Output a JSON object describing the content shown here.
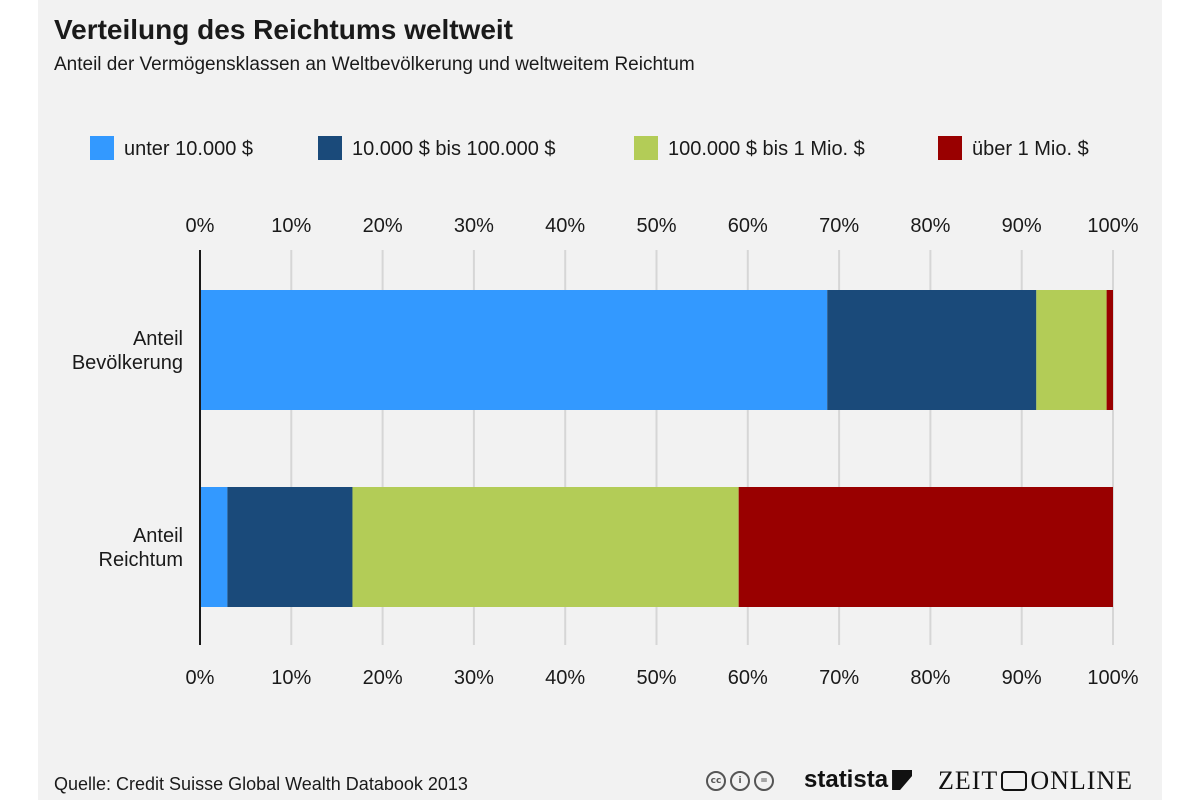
{
  "header": {
    "title": "Verteilung des Reichtums weltweit",
    "subtitle": "Anteil der Vermögensklassen an Weltbevölkerung und weltweitem Reichtum"
  },
  "footer": {
    "source": "Quelle: Credit Suisse Global Wealth Databook 2013",
    "cc_icons": [
      "cc-icon",
      "by-icon",
      "nd-icon"
    ],
    "brand_statista": "statista",
    "brand_zeit_left": "ZEIT",
    "brand_zeit_right": "ONLINE"
  },
  "chart_data": {
    "type": "bar",
    "orientation": "horizontal",
    "stacked": true,
    "title": "Verteilung des Reichtums weltweit",
    "subtitle": "Anteil der Vermögensklassen an Weltbevölkerung und weltweitem Reichtum",
    "categories": [
      "Anteil\nBevölkerung",
      "Anteil\nReichtum"
    ],
    "series": [
      {
        "name": "unter 10.000 $",
        "color": "#3399ff",
        "values": [
          68.7,
          3.0
        ]
      },
      {
        "name": "10.000 $ bis 100.000 $",
        "color": "#1a4a7a",
        "values": [
          22.9,
          13.7
        ]
      },
      {
        "name": "100.000 $ bis 1 Mio. $",
        "color": "#b3cc57",
        "values": [
          7.7,
          42.3
        ]
      },
      {
        "name": "über 1 Mio. $",
        "color": "#990000",
        "values": [
          0.7,
          41.0
        ]
      }
    ],
    "xlim": [
      0,
      100
    ],
    "xticks": [
      "0%",
      "10%",
      "20%",
      "30%",
      "40%",
      "50%",
      "60%",
      "70%",
      "80%",
      "90%",
      "100%"
    ],
    "xtick_values": [
      0,
      10,
      20,
      30,
      40,
      50,
      60,
      70,
      80,
      90,
      100
    ],
    "grid": true,
    "axis_labels_top_and_bottom": true,
    "legend_position": "top"
  }
}
